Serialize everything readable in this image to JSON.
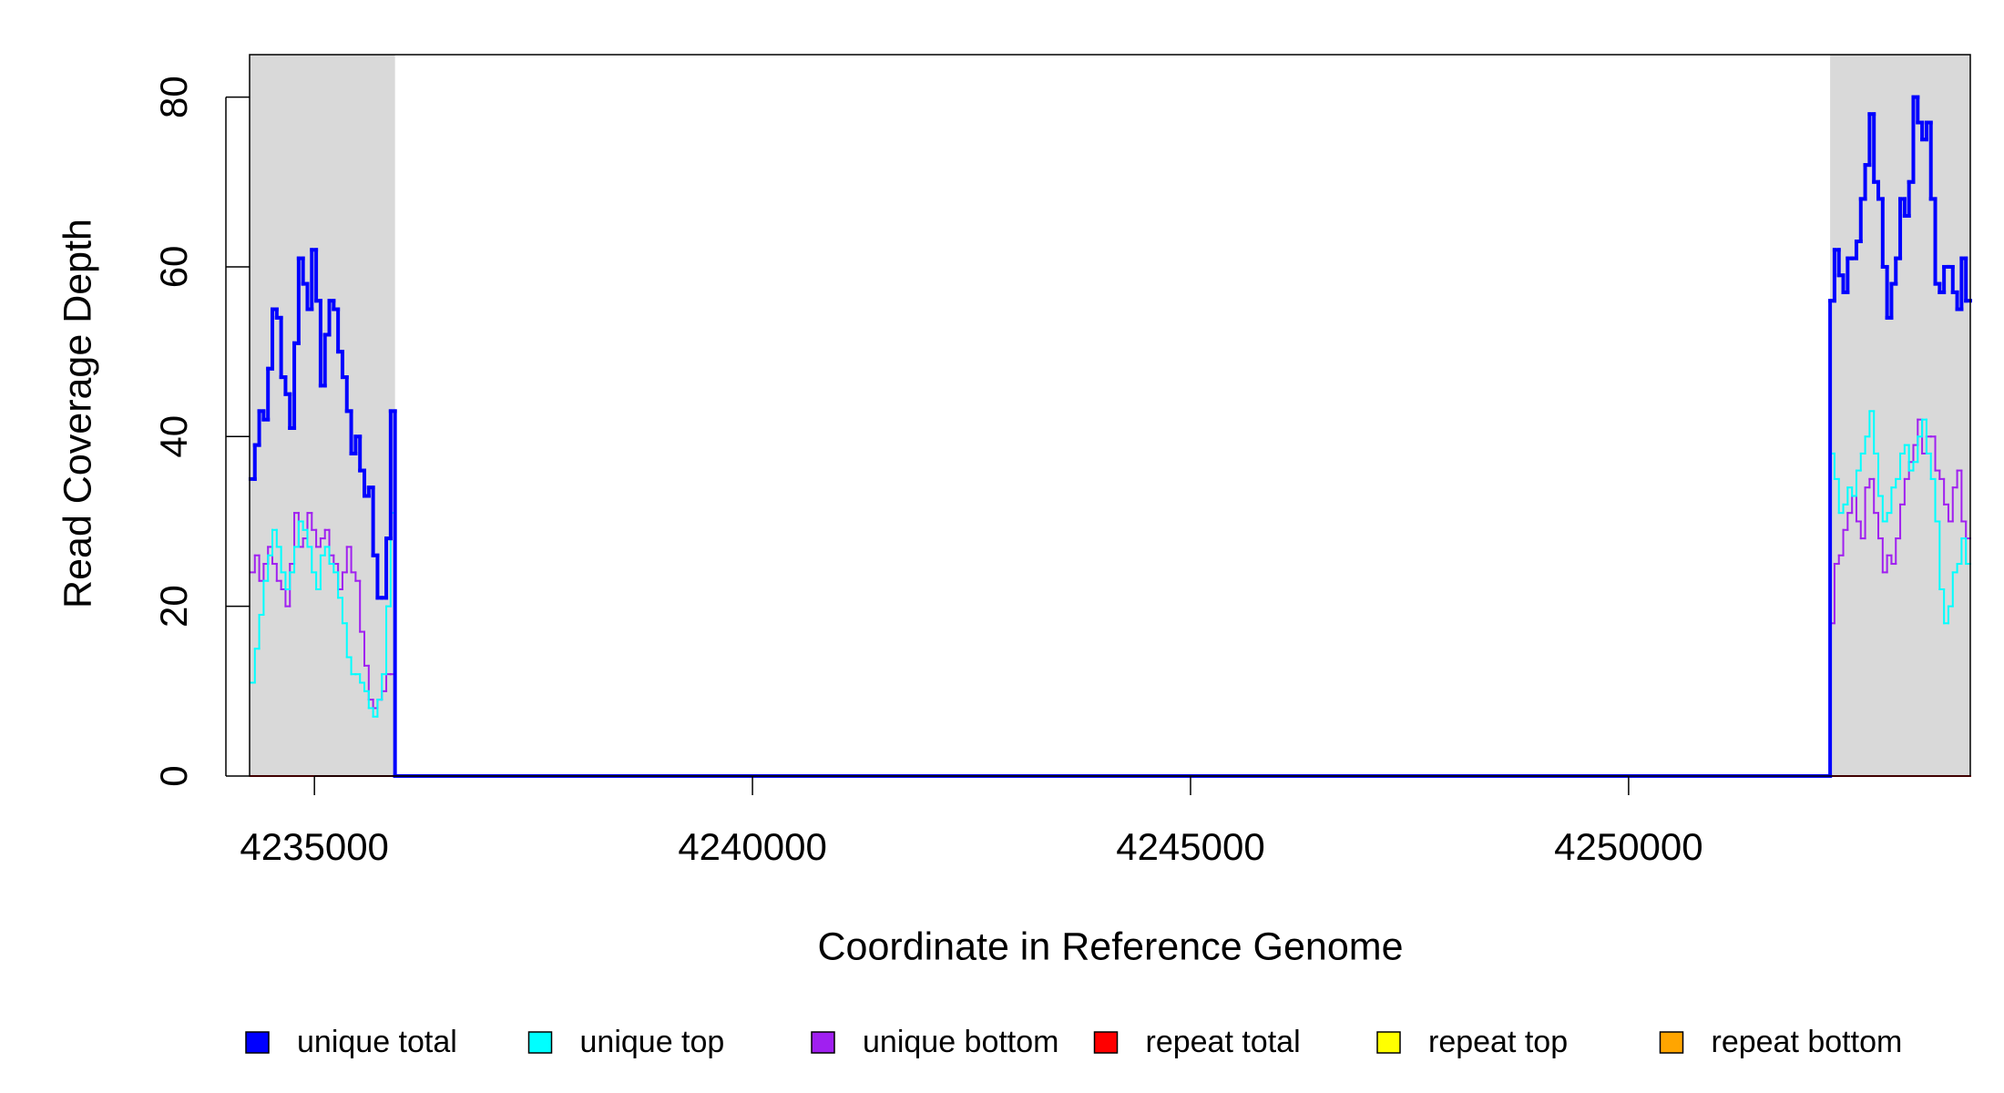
{
  "chart_data": {
    "type": "step",
    "x_label": "Coordinate in Reference Genome",
    "y_label": "Read Coverage Depth",
    "xlim": [
      4234260,
      4253900
    ],
    "ylim": [
      0,
      85
    ],
    "xticks": [
      4235000,
      4240000,
      4245000,
      4250000
    ],
    "yticks": [
      0,
      20,
      40,
      60,
      80
    ],
    "shaded_regions": [
      [
        4234260,
        4235920
      ],
      [
        4252300,
        4253900
      ]
    ],
    "shade_color": "#d9d9d9",
    "x": [
      4234270,
      4234320,
      4234370,
      4234420,
      4234470,
      4234520,
      4234570,
      4234620,
      4234670,
      4234720,
      4234770,
      4234820,
      4234870,
      4234920,
      4234970,
      4235020,
      4235070,
      4235120,
      4235170,
      4235220,
      4235270,
      4235320,
      4235370,
      4235420,
      4235470,
      4235520,
      4235570,
      4235620,
      4235670,
      4235720,
      4235770,
      4235820,
      4235870,
      4235920,
      4252300,
      4252350,
      4252400,
      4252450,
      4252500,
      4252550,
      4252600,
      4252650,
      4252700,
      4252750,
      4252800,
      4252850,
      4252900,
      4252950,
      4253000,
      4253050,
      4253100,
      4253150,
      4253200,
      4253250,
      4253300,
      4253350,
      4253400,
      4253450,
      4253500,
      4253550,
      4253600,
      4253650,
      4253700,
      4253750,
      4253800,
      4253850
    ],
    "series": [
      {
        "name": "unique total",
        "color": "#0000ff",
        "values": [
          35,
          39,
          43,
          42,
          48,
          55,
          54,
          47,
          45,
          41,
          51,
          61,
          58,
          55,
          62,
          56,
          46,
          52,
          56,
          55,
          50,
          47,
          43,
          38,
          40,
          36,
          33,
          34,
          26,
          21,
          21,
          28,
          43,
          0,
          56,
          62,
          59,
          57,
          61,
          61,
          63,
          68,
          72,
          78,
          70,
          68,
          60,
          54,
          58,
          61,
          68,
          66,
          70,
          80,
          77,
          75,
          77,
          68,
          58,
          57,
          60,
          60,
          57,
          55,
          61,
          56
        ]
      },
      {
        "name": "unique top",
        "color": "#00ffff",
        "values": [
          11,
          15,
          19,
          23,
          26,
          29,
          27,
          24,
          22,
          24,
          27,
          30,
          29,
          27,
          24,
          22,
          26,
          27,
          25,
          24,
          21,
          18,
          14,
          12,
          12,
          11,
          10,
          8,
          7,
          9,
          12,
          20,
          31,
          0,
          38,
          35,
          31,
          32,
          34,
          33,
          36,
          38,
          40,
          43,
          38,
          33,
          30,
          31,
          34,
          35,
          38,
          39,
          36,
          37,
          40,
          42,
          38,
          35,
          30,
          22,
          18,
          20,
          24,
          25,
          28,
          25
        ]
      },
      {
        "name": "unique bottom",
        "color": "#a020f0",
        "values": [
          24,
          26,
          23,
          25,
          27,
          25,
          23,
          22,
          20,
          25,
          31,
          27,
          28,
          31,
          29,
          27,
          28,
          29,
          26,
          25,
          22,
          24,
          27,
          24,
          23,
          17,
          13,
          9,
          8,
          9,
          10,
          12,
          12,
          0,
          18,
          25,
          26,
          29,
          31,
          33,
          30,
          28,
          34,
          35,
          31,
          28,
          24,
          26,
          25,
          28,
          32,
          35,
          37,
          39,
          42,
          38,
          40,
          40,
          36,
          35,
          32,
          30,
          34,
          36,
          30,
          28
        ]
      },
      {
        "name": "repeat total",
        "color": "#ff0000",
        "values": [
          0,
          0,
          0,
          0,
          0,
          0,
          0,
          0,
          0,
          0,
          0,
          0,
          0,
          0,
          0,
          0,
          0,
          0,
          0,
          0,
          0,
          0,
          0,
          0,
          0,
          0,
          0,
          0,
          0,
          0,
          0,
          0,
          0,
          0,
          0,
          0,
          0,
          0,
          0,
          0,
          0,
          0,
          0,
          0,
          0,
          0,
          0,
          0,
          0,
          0,
          0,
          0,
          0,
          0,
          0,
          0,
          0,
          0,
          0,
          0,
          0,
          0,
          0,
          0,
          0,
          0
        ]
      },
      {
        "name": "repeat top",
        "color": "#ffff00",
        "values": [
          0,
          0,
          0,
          0,
          0,
          0,
          0,
          0,
          0,
          0,
          0,
          0,
          0,
          0,
          0,
          0,
          0,
          0,
          0,
          0,
          0,
          0,
          0,
          0,
          0,
          0,
          0,
          0,
          0,
          0,
          0,
          0,
          0,
          0,
          0,
          0,
          0,
          0,
          0,
          0,
          0,
          0,
          0,
          0,
          0,
          0,
          0,
          0,
          0,
          0,
          0,
          0,
          0,
          0,
          0,
          0,
          0,
          0,
          0,
          0,
          0,
          0,
          0,
          0,
          0,
          0
        ]
      },
      {
        "name": "repeat bottom",
        "color": "#ffa500",
        "values": [
          0,
          0,
          0,
          0,
          0,
          0,
          0,
          0,
          0,
          0,
          0,
          0,
          0,
          0,
          0,
          0,
          0,
          0,
          0,
          0,
          0,
          0,
          0,
          0,
          0,
          0,
          0,
          0,
          0,
          0,
          0,
          0,
          0,
          0,
          0,
          0,
          0,
          0,
          0,
          0,
          0,
          0,
          0,
          0,
          0,
          0,
          0,
          0,
          0,
          0,
          0,
          0,
          0,
          0,
          0,
          0,
          0,
          0,
          0,
          0,
          0,
          0,
          0,
          0,
          0,
          0
        ]
      }
    ]
  }
}
